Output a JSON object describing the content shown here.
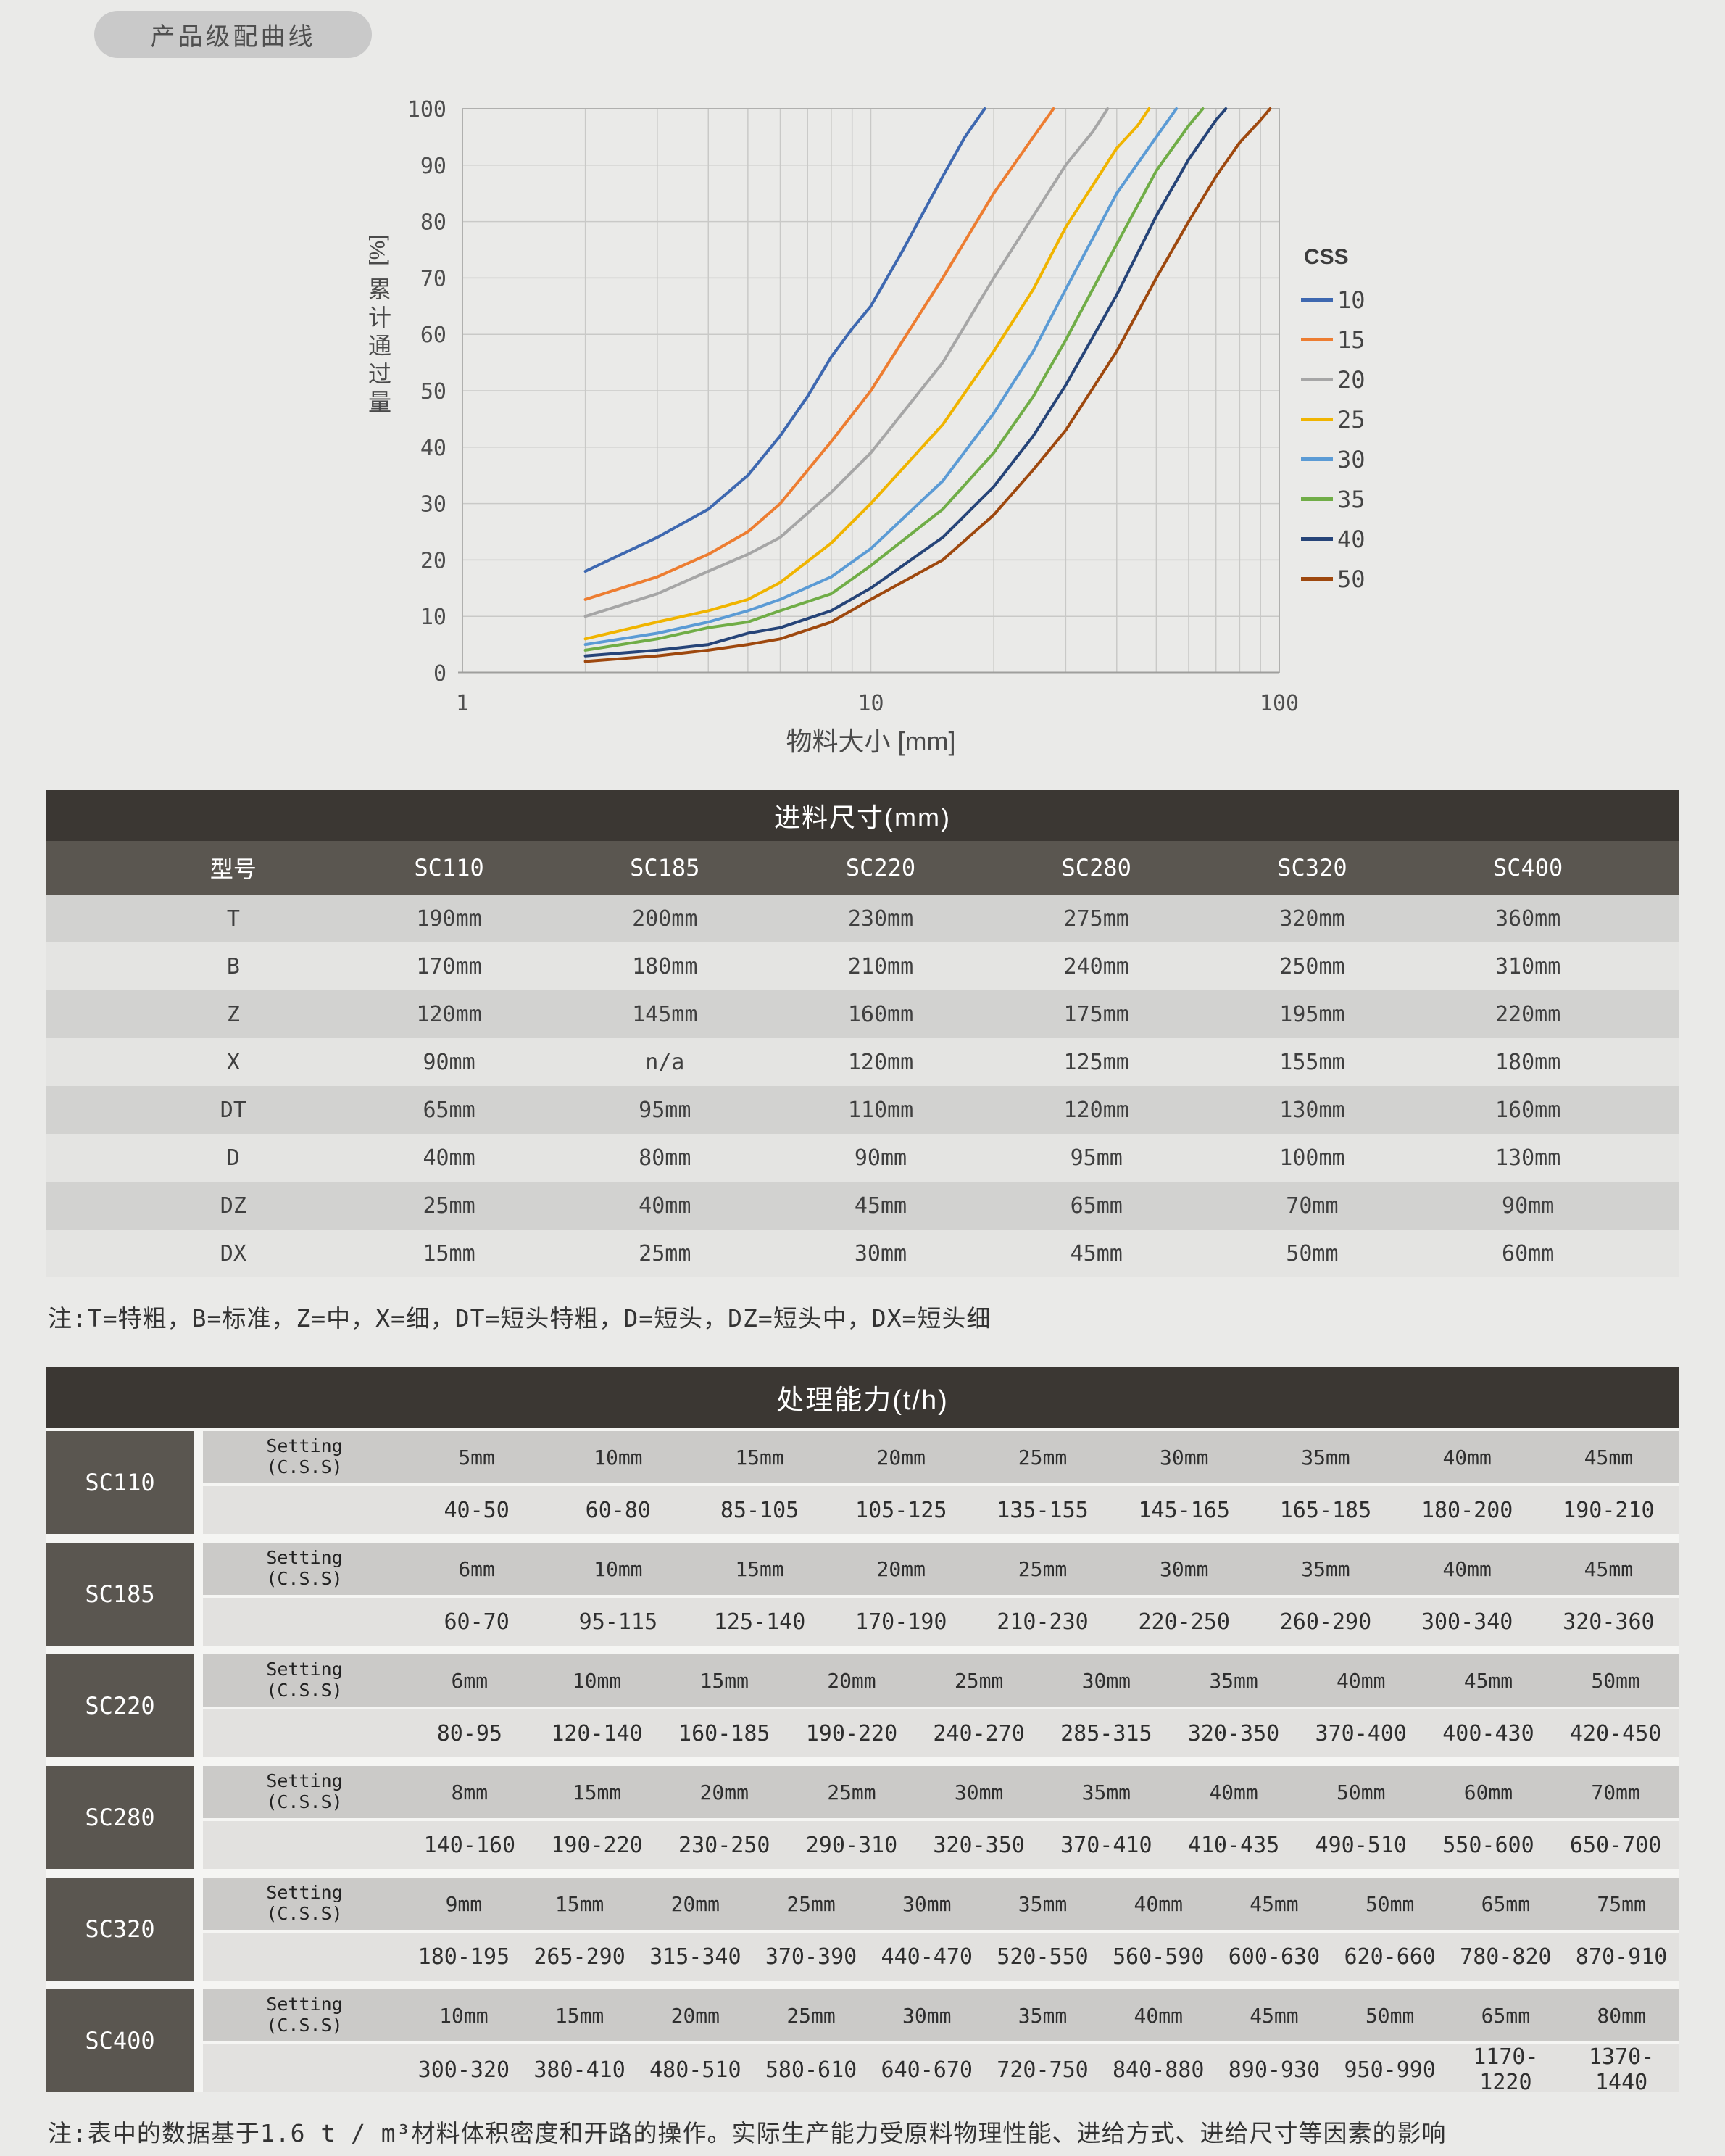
{
  "title_pill": {
    "label": "产品级配曲线"
  },
  "chart_data": {
    "type": "line",
    "title": "",
    "xlabel": "物料大小 [mm]",
    "ylabel_unit": "[%]",
    "ylabel_text": "累计通过量",
    "x_scale": "log",
    "xlim": [
      1,
      100
    ],
    "ylim": [
      0,
      100
    ],
    "x_ticks": [
      1,
      10,
      100
    ],
    "y_ticks": [
      0,
      10,
      20,
      30,
      40,
      50,
      60,
      70,
      80,
      90,
      100
    ],
    "grid": "on",
    "legend_title": "CSS",
    "legend_position": "right",
    "series": [
      {
        "name": "10",
        "color": "#3e68b0",
        "points": [
          [
            2,
            18
          ],
          [
            3,
            24
          ],
          [
            4,
            29
          ],
          [
            5,
            35
          ],
          [
            6,
            42
          ],
          [
            7,
            49
          ],
          [
            8,
            56
          ],
          [
            9,
            61
          ],
          [
            10,
            65
          ],
          [
            12,
            75
          ],
          [
            15,
            88
          ],
          [
            17,
            95
          ],
          [
            19,
            100
          ]
        ]
      },
      {
        "name": "15",
        "color": "#ed7d31",
        "points": [
          [
            2,
            13
          ],
          [
            3,
            17
          ],
          [
            4,
            21
          ],
          [
            5,
            25
          ],
          [
            6,
            30
          ],
          [
            8,
            41
          ],
          [
            10,
            50
          ],
          [
            12,
            59
          ],
          [
            15,
            70
          ],
          [
            20,
            85
          ],
          [
            25,
            95
          ],
          [
            28,
            100
          ]
        ]
      },
      {
        "name": "20",
        "color": "#a6a6a6",
        "points": [
          [
            2,
            10
          ],
          [
            3,
            14
          ],
          [
            4,
            18
          ],
          [
            5,
            21
          ],
          [
            6,
            24
          ],
          [
            8,
            32
          ],
          [
            10,
            39
          ],
          [
            15,
            55
          ],
          [
            20,
            70
          ],
          [
            25,
            81
          ],
          [
            30,
            90
          ],
          [
            35,
            96
          ],
          [
            38,
            100
          ]
        ]
      },
      {
        "name": "25",
        "color": "#f0b400",
        "points": [
          [
            2,
            6
          ],
          [
            3,
            9
          ],
          [
            4,
            11
          ],
          [
            5,
            13
          ],
          [
            6,
            16
          ],
          [
            8,
            23
          ],
          [
            10,
            30
          ],
          [
            15,
            44
          ],
          [
            20,
            57
          ],
          [
            25,
            68
          ],
          [
            30,
            79
          ],
          [
            40,
            93
          ],
          [
            45,
            97
          ],
          [
            48,
            100
          ]
        ]
      },
      {
        "name": "30",
        "color": "#5b9bd5",
        "points": [
          [
            2,
            5
          ],
          [
            3,
            7
          ],
          [
            4,
            9
          ],
          [
            5,
            11
          ],
          [
            6,
            13
          ],
          [
            8,
            17
          ],
          [
            10,
            22
          ],
          [
            15,
            34
          ],
          [
            20,
            46
          ],
          [
            25,
            57
          ],
          [
            30,
            68
          ],
          [
            40,
            85
          ],
          [
            50,
            95
          ],
          [
            56,
            100
          ]
        ]
      },
      {
        "name": "35",
        "color": "#70ad47",
        "points": [
          [
            2,
            4
          ],
          [
            3,
            6
          ],
          [
            4,
            8
          ],
          [
            5,
            9
          ],
          [
            6,
            11
          ],
          [
            8,
            14
          ],
          [
            10,
            19
          ],
          [
            15,
            29
          ],
          [
            20,
            39
          ],
          [
            25,
            49
          ],
          [
            30,
            59
          ],
          [
            40,
            76
          ],
          [
            50,
            89
          ],
          [
            60,
            97
          ],
          [
            65,
            100
          ]
        ]
      },
      {
        "name": "40",
        "color": "#264478",
        "points": [
          [
            2,
            3
          ],
          [
            3,
            4
          ],
          [
            4,
            5
          ],
          [
            5,
            7
          ],
          [
            6,
            8
          ],
          [
            8,
            11
          ],
          [
            10,
            15
          ],
          [
            15,
            24
          ],
          [
            20,
            33
          ],
          [
            25,
            42
          ],
          [
            30,
            51
          ],
          [
            40,
            67
          ],
          [
            50,
            81
          ],
          [
            60,
            91
          ],
          [
            70,
            98
          ],
          [
            74,
            100
          ]
        ]
      },
      {
        "name": "50",
        "color": "#9e480e",
        "points": [
          [
            2,
            2
          ],
          [
            3,
            3
          ],
          [
            4,
            4
          ],
          [
            5,
            5
          ],
          [
            6,
            6
          ],
          [
            8,
            9
          ],
          [
            10,
            13
          ],
          [
            15,
            20
          ],
          [
            20,
            28
          ],
          [
            25,
            36
          ],
          [
            30,
            43
          ],
          [
            40,
            57
          ],
          [
            50,
            70
          ],
          [
            60,
            80
          ],
          [
            70,
            88
          ],
          [
            80,
            94
          ],
          [
            90,
            98
          ],
          [
            95,
            100
          ]
        ]
      }
    ]
  },
  "feed_table": {
    "title": "进料尺寸(mm)",
    "columns": [
      "型号",
      "SC110",
      "SC185",
      "SC220",
      "SC280",
      "SC320",
      "SC400"
    ],
    "rows": [
      {
        "label": "T",
        "values": [
          "190mm",
          "200mm",
          "230mm",
          "275mm",
          "320mm",
          "360mm"
        ]
      },
      {
        "label": "B",
        "values": [
          "170mm",
          "180mm",
          "210mm",
          "240mm",
          "250mm",
          "310mm"
        ]
      },
      {
        "label": "Z",
        "values": [
          "120mm",
          "145mm",
          "160mm",
          "175mm",
          "195mm",
          "220mm"
        ]
      },
      {
        "label": "X",
        "values": [
          "90mm",
          "n/a",
          "120mm",
          "125mm",
          "155mm",
          "180mm"
        ]
      },
      {
        "label": "DT",
        "values": [
          "65mm",
          "95mm",
          "110mm",
          "120mm",
          "130mm",
          "160mm"
        ]
      },
      {
        "label": "D",
        "values": [
          "40mm",
          "80mm",
          "90mm",
          "95mm",
          "100mm",
          "130mm"
        ]
      },
      {
        "label": "DZ",
        "values": [
          "25mm",
          "40mm",
          "45mm",
          "65mm",
          "70mm",
          "90mm"
        ]
      },
      {
        "label": "DX",
        "values": [
          "15mm",
          "25mm",
          "30mm",
          "45mm",
          "50mm",
          "60mm"
        ]
      }
    ],
    "note": "注:T=特粗，B=标准，Z=中，X=细，DT=短头特粗，D=短头，DZ=短头中，DX=短头细"
  },
  "capacity_table": {
    "title": "处理能力(t/h)",
    "setting_label_line1": "Setting",
    "setting_label_line2": "(C.S.S)",
    "blocks": [
      {
        "model": "SC110",
        "settings": [
          "5mm",
          "10mm",
          "15mm",
          "20mm",
          "25mm",
          "30mm",
          "35mm",
          "40mm",
          "45mm"
        ],
        "capacities": [
          "40-50",
          "60-80",
          "85-105",
          "105-125",
          "135-155",
          "145-165",
          "165-185",
          "180-200",
          "190-210"
        ]
      },
      {
        "model": "SC185",
        "settings": [
          "6mm",
          "10mm",
          "15mm",
          "20mm",
          "25mm",
          "30mm",
          "35mm",
          "40mm",
          "45mm"
        ],
        "capacities": [
          "60-70",
          "95-115",
          "125-140",
          "170-190",
          "210-230",
          "220-250",
          "260-290",
          "300-340",
          "320-360"
        ]
      },
      {
        "model": "SC220",
        "settings": [
          "6mm",
          "10mm",
          "15mm",
          "20mm",
          "25mm",
          "30mm",
          "35mm",
          "40mm",
          "45mm",
          "50mm"
        ],
        "capacities": [
          "80-95",
          "120-140",
          "160-185",
          "190-220",
          "240-270",
          "285-315",
          "320-350",
          "370-400",
          "400-430",
          "420-450"
        ]
      },
      {
        "model": "SC280",
        "settings": [
          "8mm",
          "15mm",
          "20mm",
          "25mm",
          "30mm",
          "35mm",
          "40mm",
          "50mm",
          "60mm",
          "70mm"
        ],
        "capacities": [
          "140-160",
          "190-220",
          "230-250",
          "290-310",
          "320-350",
          "370-410",
          "410-435",
          "490-510",
          "550-600",
          "650-700"
        ]
      },
      {
        "model": "SC320",
        "settings": [
          "9mm",
          "15mm",
          "20mm",
          "25mm",
          "30mm",
          "35mm",
          "40mm",
          "45mm",
          "50mm",
          "65mm",
          "75mm"
        ],
        "capacities": [
          "180-195",
          "265-290",
          "315-340",
          "370-390",
          "440-470",
          "520-550",
          "560-590",
          "600-630",
          "620-660",
          "780-820",
          "870-910"
        ]
      },
      {
        "model": "SC400",
        "settings": [
          "10mm",
          "15mm",
          "20mm",
          "25mm",
          "30mm",
          "35mm",
          "40mm",
          "45mm",
          "50mm",
          "65mm",
          "80mm"
        ],
        "capacities": [
          "300-320",
          "380-410",
          "480-510",
          "580-610",
          "640-670",
          "720-750",
          "840-880",
          "890-930",
          "950-990",
          "1170-1220",
          "1370-1440"
        ]
      }
    ],
    "note": "注:表中的数据基于1.6 t / m³材料体积密度和开路的操作。实际生产能力受原料物理性能、进给方式、进给尺寸等因素的影响"
  }
}
